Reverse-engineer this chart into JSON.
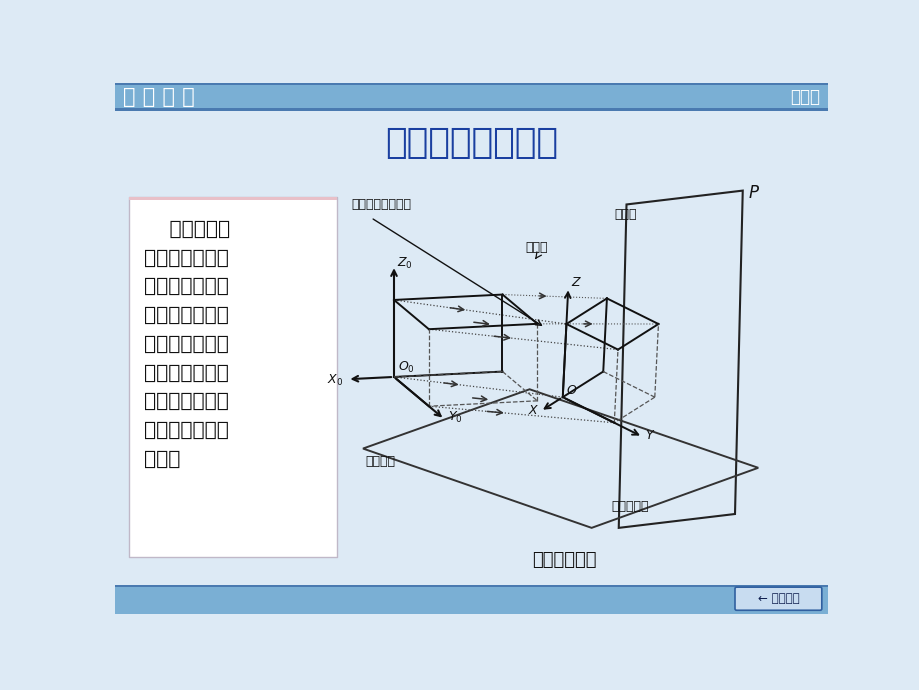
{
  "title": "轴测图的基本原理",
  "title_color": "#1a3fa0",
  "title_fontsize": 28,
  "bg_color": "#ddeaf5",
  "header_color": "#7aafd4",
  "header_dark_color": "#4a7ab0",
  "header_text_left": "设 计 图 学",
  "header_text_right": "轴测图",
  "footer_text": "返回目录",
  "body_text": "    根据平行投\n影原理，把物体\n连同坐标轴一起\n沿着不平行于任\n一坐标面的方向\n向轴测投影面进\n行投射，所得到\n的投影图称为轴\n测图。",
  "text_box_bg": "#ffffff",
  "text_color": "#111111",
  "diagram_caption": "轴测图的形成",
  "label_xingti": "形体和直角坐标轴",
  "label_zhouce_zhou": "轴测轴",
  "label_toushe": "投射线",
  "label_zhouce_touying": "轴测投影",
  "label_zhouce_touyingmian": "轴测投影面",
  "line_color": "#111111",
  "dash_color": "#333333"
}
